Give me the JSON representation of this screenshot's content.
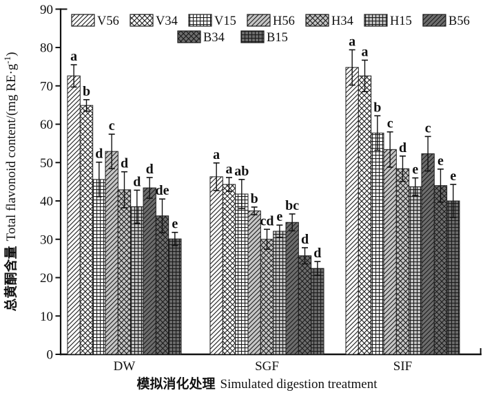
{
  "figure": {
    "background": "#ffffff"
  },
  "chart_data": {
    "type": "bar",
    "title": "",
    "categories": [
      "DW",
      "SGF",
      "SIF"
    ],
    "xlabel": "模拟消化处理 Simulated digestion treatment",
    "xlabel_cn": "模拟消化处理",
    "xlabel_en": "Simulated digestion treatment",
    "ylabel": "总黄酮含量 Total flavonoid content/(mg RE·g⁻¹)",
    "ylabel_cn": "总黄酮含量",
    "ylabel_en_prefix": "Total flavonoid content/(mg RE·g",
    "ylabel_superscript": "-1",
    "ylabel_suffix": ")",
    "ylim": [
      0,
      90
    ],
    "ytick_step": 10,
    "yticks": [
      0,
      10,
      20,
      30,
      40,
      50,
      60,
      70,
      80,
      90
    ],
    "grid": false,
    "legend_position": "top-center",
    "legend_row_break": 7,
    "error_bars": true,
    "bar_edge_color": "#1a1a1a",
    "hatch_color": "#1a1a1a",
    "axis_color": "#111111",
    "series": [
      {
        "name": "V56",
        "fill": "#fcfcfc",
        "pattern": "diagonal",
        "values": [
          72.6,
          46.3,
          74.8
        ],
        "errors": [
          2.9,
          3.6,
          4.6
        ],
        "letters": [
          "a",
          "a",
          "a"
        ]
      },
      {
        "name": "V34",
        "fill": "#fcfcfc",
        "pattern": "crosshatch",
        "values": [
          64.9,
          44.3,
          72.6
        ],
        "errors": [
          1.5,
          1.8,
          4.1
        ],
        "letters": [
          "b",
          "a",
          "a"
        ]
      },
      {
        "name": "V15",
        "fill": "#fcfcfc",
        "pattern": "grid",
        "values": [
          45.6,
          41.8,
          57.7
        ],
        "errors": [
          4.5,
          3.8,
          4.5
        ],
        "letters": [
          "d",
          "ab",
          "b"
        ]
      },
      {
        "name": "H56",
        "fill": "#c6c6c6",
        "pattern": "diagonal",
        "values": [
          52.9,
          37.4,
          53.4
        ],
        "errors": [
          4.5,
          1.0,
          4.6
        ],
        "letters": [
          "c",
          "b",
          "c"
        ]
      },
      {
        "name": "H34",
        "fill": "#c6c6c6",
        "pattern": "crosshatch",
        "values": [
          42.9,
          30.0,
          48.4
        ],
        "errors": [
          4.7,
          2.6,
          3.3
        ],
        "letters": [
          "d",
          "cd",
          "d"
        ]
      },
      {
        "name": "H15",
        "fill": "#c6c6c6",
        "pattern": "grid",
        "values": [
          38.5,
          32.1,
          43.7
        ],
        "errors": [
          4.3,
          1.6,
          2.3
        ],
        "letters": [
          "d",
          "e",
          "e"
        ]
      },
      {
        "name": "B56",
        "fill": "#6d6d6d",
        "pattern": "diagonal",
        "values": [
          43.4,
          34.4,
          52.3
        ],
        "errors": [
          2.7,
          2.2,
          4.5
        ],
        "letters": [
          "d",
          "bc",
          "c"
        ]
      },
      {
        "name": "B34",
        "fill": "#6d6d6d",
        "pattern": "crosshatch",
        "values": [
          36.1,
          25.7,
          44.0
        ],
        "errors": [
          4.4,
          2.1,
          4.3
        ],
        "letters": [
          "de",
          "d",
          "e"
        ]
      },
      {
        "name": "B15",
        "fill": "#6d6d6d",
        "pattern": "grid",
        "values": [
          30.1,
          22.4,
          40.0
        ],
        "errors": [
          1.7,
          1.8,
          4.3
        ],
        "letters": [
          "e",
          "d",
          "e"
        ]
      }
    ]
  }
}
